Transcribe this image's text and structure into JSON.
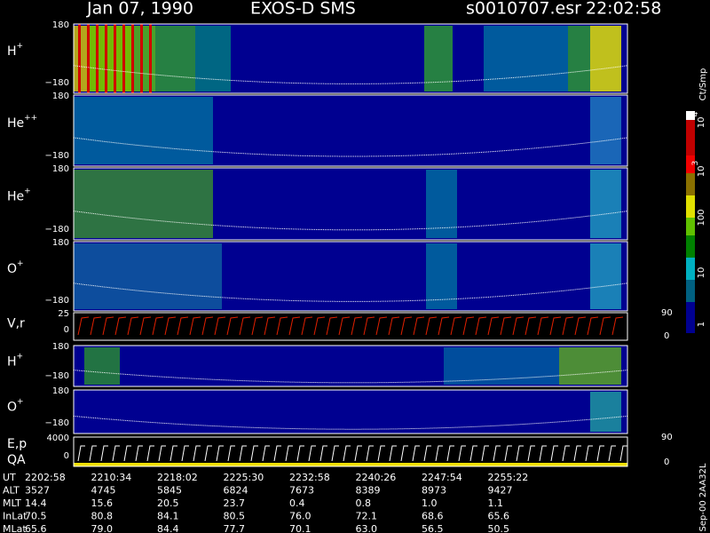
{
  "header": {
    "date": "Jan 07, 1990",
    "instrument": "EXOS-D SMS",
    "file": "s0010707.esr",
    "time": "22:02:58"
  },
  "panels": [
    {
      "label": "H",
      "sup": "+",
      "top": "180",
      "bottom": "−180"
    },
    {
      "label": "He",
      "sup": "++",
      "top": "180",
      "bottom": "−180"
    },
    {
      "label": "He",
      "sup": "+",
      "top": "180",
      "bottom": "−180"
    },
    {
      "label": "O",
      "sup": "+",
      "top": "180",
      "bottom": "−180"
    },
    {
      "label": "V,r",
      "top": "25",
      "bottom": "0",
      "right_top": "90",
      "right_bottom": "0"
    },
    {
      "label": "H",
      "sup": "+",
      "top": "180",
      "bottom": "−180"
    },
    {
      "label": "O",
      "sup": "+",
      "top": "180",
      "bottom": "−180"
    },
    {
      "label": "E,p",
      "label2": "QA",
      "top": "4000",
      "bottom": "0",
      "right_top": "90",
      "right_bottom": "0"
    }
  ],
  "colorbar": {
    "label": "Ct/Smp",
    "ticks": [
      {
        "base": "10",
        "sup": "4"
      },
      {
        "base": "10",
        "sup": "3"
      },
      {
        "base": "100"
      },
      {
        "base": "10"
      },
      {
        "base": "1"
      }
    ]
  },
  "table": {
    "rows": [
      [
        "UT",
        "2202:58",
        "2210:34",
        "2218:02",
        "2225:30",
        "2232:58",
        "2240:26",
        "2247:54",
        "2255:22"
      ],
      [
        "ALT",
        "3527",
        "4745",
        "5845",
        "6824",
        "7673",
        "8389",
        "8973",
        "9427"
      ],
      [
        "MLT",
        "14.4",
        "15.6",
        "20.5",
        "23.7",
        "0.4",
        "0.8",
        "1.0",
        "1.1"
      ],
      [
        "InLat",
        "70.5",
        "80.8",
        "84.1",
        "80.5",
        "76.0",
        "72.1",
        "68.6",
        "65.6"
      ],
      [
        "MLat",
        "65.6",
        "79.0",
        "84.4",
        "77.7",
        "70.1",
        "63.0",
        "56.5",
        "50.5"
      ]
    ]
  },
  "footer": "Sep-00 2AA32L"
}
